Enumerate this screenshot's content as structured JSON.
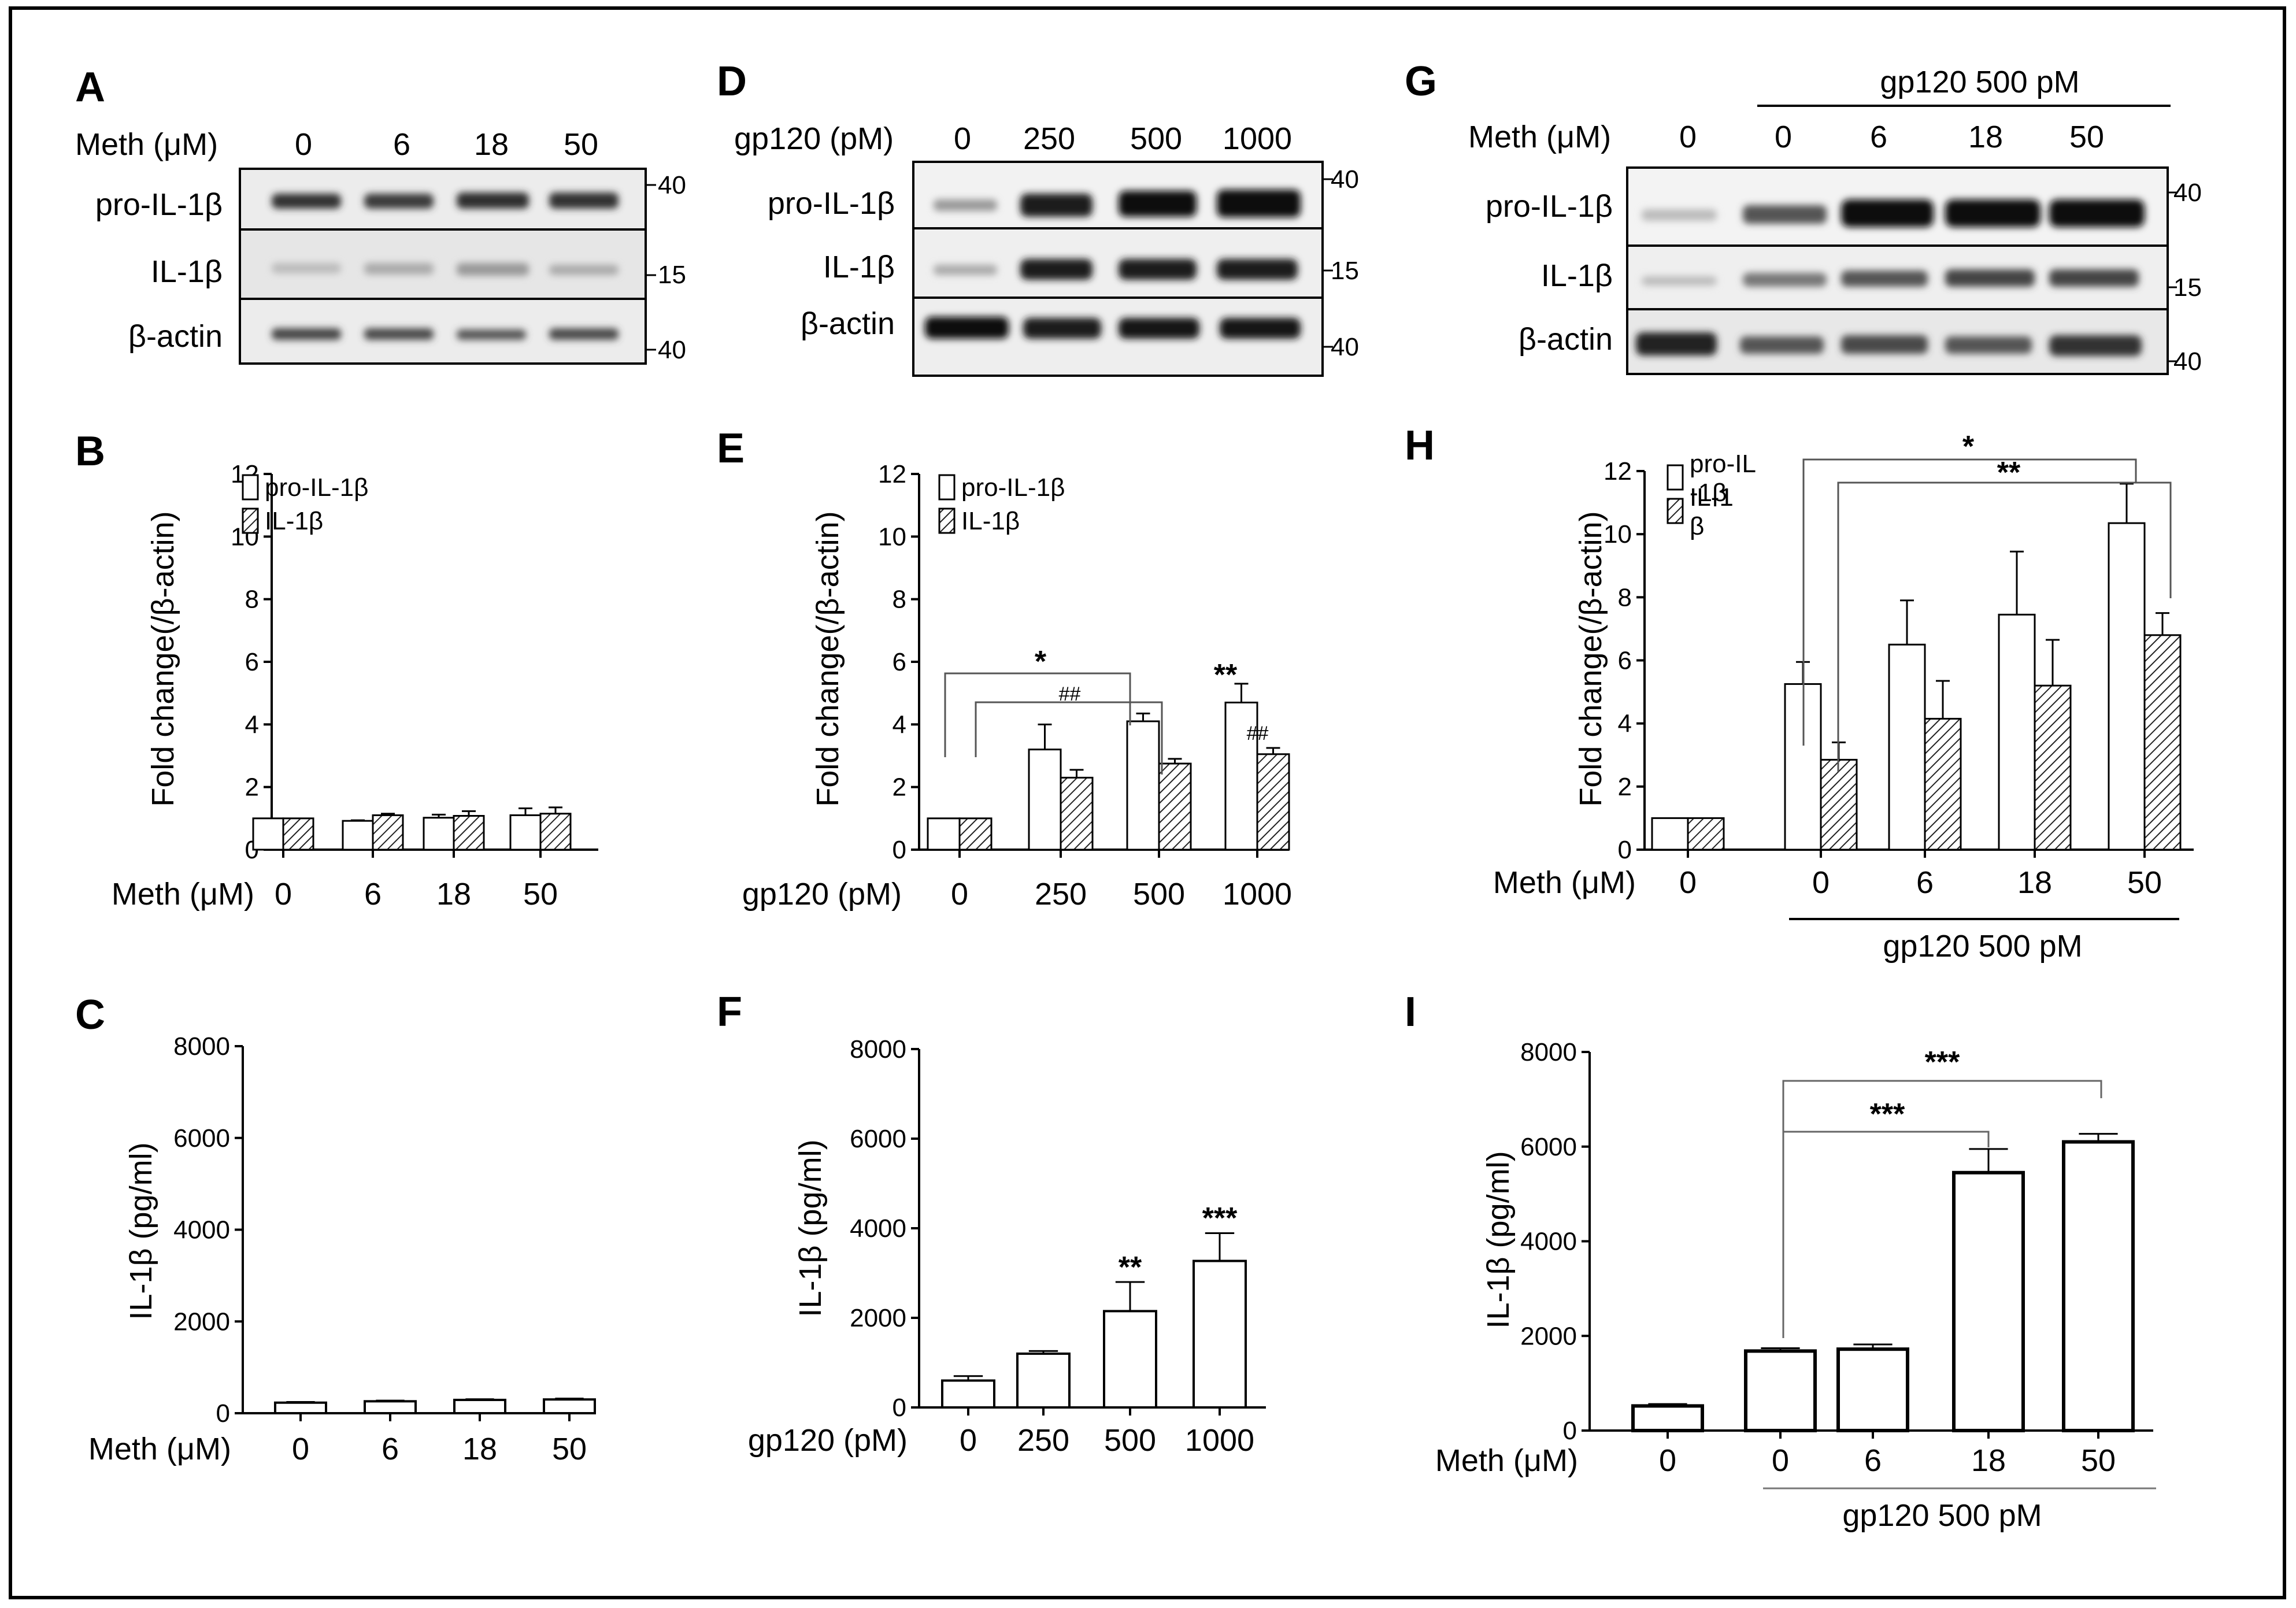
{
  "panels": {
    "A": {
      "letter": "A",
      "row_label": "Meth (μM)",
      "lanes": [
        "0",
        "6",
        "18",
        "50"
      ],
      "blots": [
        "pro-IL-1β",
        "IL-1β",
        "β-actin"
      ],
      "markers": [
        "40",
        "15",
        "40"
      ]
    },
    "D": {
      "letter": "D",
      "row_label": "gp120 (pM)",
      "lanes": [
        "0",
        "250",
        "500",
        "1000"
      ],
      "blots": [
        "pro-IL-1β",
        "IL-1β",
        "β-actin"
      ],
      "markers": [
        "40",
        "15",
        "40"
      ]
    },
    "G": {
      "letter": "G",
      "top_label": "gp120 500 pM",
      "row_label": "Meth (μM)",
      "lanes": [
        "0",
        "0",
        "6",
        "18",
        "50"
      ],
      "blots": [
        "pro-IL-1β",
        "IL-1β",
        "β-actin"
      ],
      "markers": [
        "40",
        "15",
        "40"
      ]
    },
    "B": {
      "letter": "B"
    },
    "C": {
      "letter": "C"
    },
    "E": {
      "letter": "E"
    },
    "F": {
      "letter": "F"
    },
    "H": {
      "letter": "H"
    },
    "I": {
      "letter": "I"
    }
  },
  "chart_data": [
    {
      "id": "B",
      "type": "bar",
      "ylabel": "Fold change(/β-actin)",
      "ylim": [
        0,
        12
      ],
      "yticks": [
        0,
        2,
        4,
        6,
        8,
        10,
        12
      ],
      "xlabel_row": "Meth (μM)",
      "categories": [
        "0",
        "6",
        "18",
        "50"
      ],
      "legend": [
        "pro-IL-1β",
        "IL-1β"
      ],
      "series": [
        {
          "name": "pro-IL-1β",
          "values": [
            1.0,
            0.92,
            1.02,
            1.1
          ],
          "errors": [
            0,
            0.02,
            0.1,
            0.22
          ]
        },
        {
          "name": "IL-1β",
          "values": [
            1.0,
            1.1,
            1.08,
            1.15
          ],
          "errors": [
            0,
            0.05,
            0.15,
            0.2
          ]
        }
      ]
    },
    {
      "id": "E",
      "type": "bar",
      "ylabel": "Fold change(/β-actin)",
      "ylim": [
        0,
        12
      ],
      "yticks": [
        0,
        2,
        4,
        6,
        8,
        10,
        12
      ],
      "xlabel_row": "gp120 (pM)",
      "categories": [
        "0",
        "250",
        "500",
        "1000"
      ],
      "legend": [
        "pro-IL-1β",
        "IL-1β"
      ],
      "series": [
        {
          "name": "pro-IL-1β",
          "values": [
            1.0,
            3.2,
            4.1,
            4.7
          ],
          "errors": [
            0,
            0.8,
            0.25,
            0.6
          ]
        },
        {
          "name": "IL-1β",
          "values": [
            1.0,
            2.3,
            2.75,
            3.05
          ],
          "errors": [
            0,
            0.25,
            0.15,
            0.2
          ]
        }
      ],
      "annotations": [
        "*",
        "##",
        "**",
        "##"
      ]
    },
    {
      "id": "H",
      "type": "bar",
      "ylabel": "Fold change(/β-actin)",
      "ylim": [
        0,
        12
      ],
      "yticks": [
        0,
        2,
        4,
        6,
        8,
        10,
        12
      ],
      "xlabel_row": "Meth (μM)",
      "categories": [
        "0",
        "0",
        "6",
        "18",
        "50"
      ],
      "group_label": "gp120 500 pM",
      "legend": [
        "pro-IL\n-1β",
        "IL-1\nβ"
      ],
      "series": [
        {
          "name": "pro-IL-1β",
          "values": [
            1.0,
            5.25,
            6.5,
            7.45,
            10.35
          ],
          "errors": [
            0,
            0.7,
            1.4,
            2.0,
            1.25
          ]
        },
        {
          "name": "IL-1β",
          "values": [
            1.0,
            2.85,
            4.15,
            5.2,
            6.8
          ],
          "errors": [
            0,
            0.55,
            1.2,
            1.45,
            0.7
          ]
        }
      ],
      "annotations": [
        "*",
        "**"
      ]
    },
    {
      "id": "C",
      "type": "bar",
      "ylabel": "IL-1β (pg/ml)",
      "ylim": [
        0,
        8000
      ],
      "yticks": [
        0,
        2000,
        4000,
        6000,
        8000
      ],
      "xlabel_row": "Meth (μM)",
      "categories": [
        "0",
        "6",
        "18",
        "50"
      ],
      "values": [
        230,
        260,
        290,
        300
      ],
      "errors": [
        15,
        15,
        15,
        20
      ]
    },
    {
      "id": "F",
      "type": "bar",
      "ylabel": "IL-1β (pg/ml)",
      "ylim": [
        0,
        8000
      ],
      "yticks": [
        0,
        2000,
        4000,
        6000,
        8000
      ],
      "xlabel_row": "gp120 (pM)",
      "categories": [
        "0",
        "250",
        "500",
        "1000"
      ],
      "values": [
        600,
        1200,
        2150,
        3270
      ],
      "errors": [
        100,
        60,
        650,
        620
      ],
      "annotations": [
        "**",
        "***"
      ]
    },
    {
      "id": "I",
      "type": "bar",
      "ylabel": "IL-1β (pg/ml)",
      "ylim": [
        0,
        8000
      ],
      "yticks": [
        0,
        2000,
        4000,
        6000,
        8000
      ],
      "xlabel_row": "Meth (μM)",
      "categories": [
        "0",
        "0",
        "6",
        "18",
        "50"
      ],
      "group_label": "gp120 500 pM",
      "values": [
        520,
        1680,
        1720,
        5450,
        6100
      ],
      "errors": [
        40,
        60,
        100,
        500,
        170
      ],
      "annotations": [
        "***",
        "***"
      ]
    }
  ]
}
